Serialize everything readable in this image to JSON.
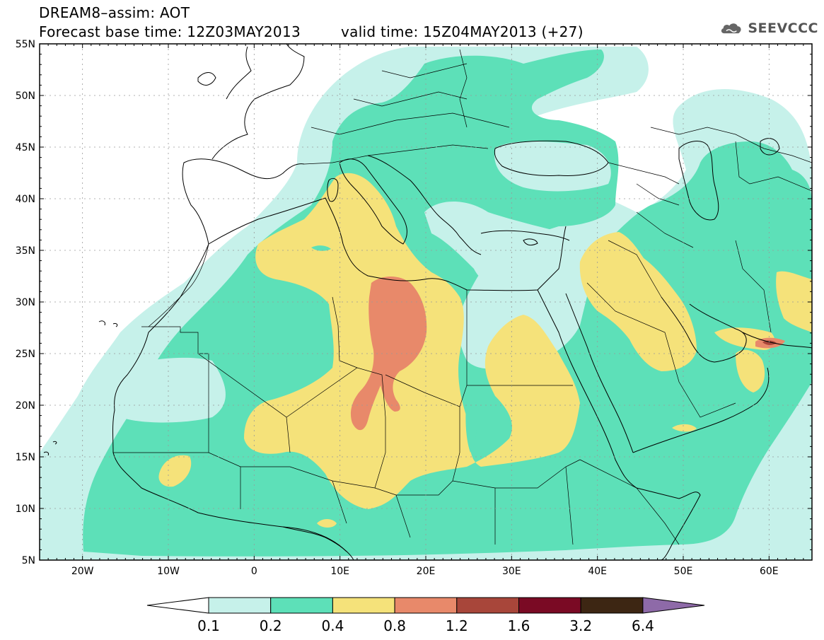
{
  "title": {
    "line1": "DREAM8–assim: AOT",
    "line2": "Forecast base time: 12Z03MAY2013",
    "valid": "valid time: 15Z04MAY2013 (+27)"
  },
  "logo": {
    "text": "SEEVCCC",
    "icon": "cloud-icon"
  },
  "map": {
    "lon_range": [
      -25,
      65
    ],
    "lat_range": [
      5,
      55
    ],
    "lat_labels": [
      "5N",
      "10N",
      "15N",
      "20N",
      "25N",
      "30N",
      "35N",
      "40N",
      "45N",
      "50N",
      "55N"
    ],
    "lat_values": [
      5,
      10,
      15,
      20,
      25,
      30,
      35,
      40,
      45,
      50,
      55
    ],
    "lon_labels": [
      "20W",
      "10W",
      "0",
      "10E",
      "20E",
      "30E",
      "40E",
      "50E",
      "60E"
    ],
    "lon_values": [
      -20,
      -10,
      0,
      10,
      20,
      30,
      40,
      50,
      60
    ],
    "grid": true
  },
  "colorbar": {
    "labels": [
      "0.1",
      "0.2",
      "0.4",
      "0.8",
      "1.2",
      "1.6",
      "3.2",
      "6.4"
    ],
    "colors": [
      "#c6f1ea",
      "#5de0b8",
      "#f5e27a",
      "#e8896a",
      "#a8463a",
      "#7a0a24",
      "#3d2613"
    ],
    "under_color": "#ffffff",
    "over_color": "#8e6aa8"
  }
}
